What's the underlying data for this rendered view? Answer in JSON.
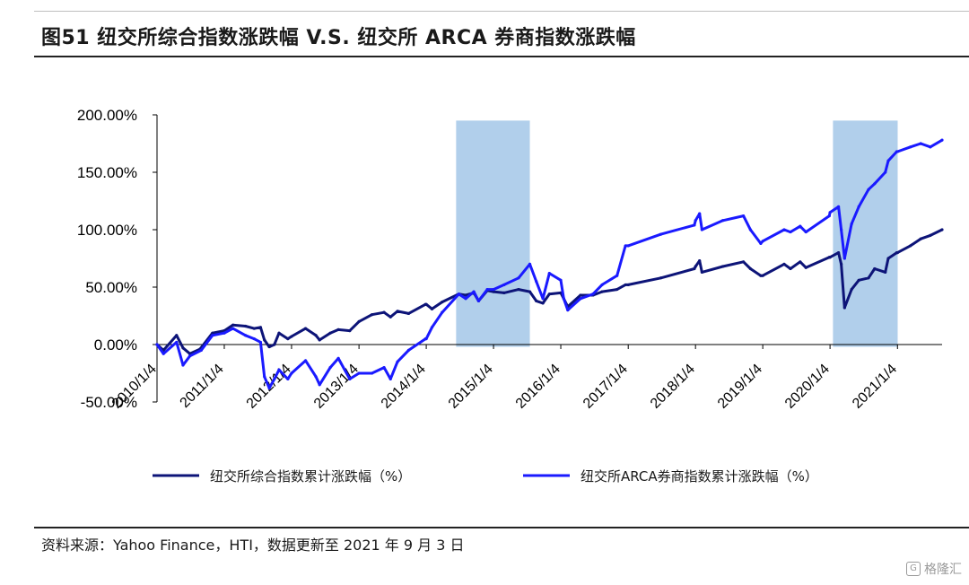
{
  "figure": {
    "title": "图51 纽交所综合指数涨跌幅 V.S. 纽交所 ARCA 券商指数涨跌幅",
    "source": "资料来源：Yahoo Finance，HTI，数据更新至 2021 年 9 月 3 日",
    "watermark": "格隆汇"
  },
  "chart_data": {
    "type": "line",
    "title": "",
    "xlabel": "",
    "ylabel": "",
    "ylim": [
      -50,
      200
    ],
    "yticks": [
      "-50.00%",
      "0.00%",
      "50.00%",
      "100.00%",
      "150.00%",
      "200.00%"
    ],
    "xlim": [
      "2010-01-04",
      "2021-09-03"
    ],
    "xticks": [
      "2010/1/4",
      "2011/1/4",
      "2012/1/4",
      "2013/1/4",
      "2014/1/4",
      "2015/1/4",
      "2016/1/4",
      "2017/1/4",
      "2018/1/4",
      "2019/1/4",
      "2020/1/4",
      "2021/1/4"
    ],
    "grid": false,
    "legend_position": "bottom",
    "shaded_periods": [
      {
        "start": "2014-06-15",
        "end": "2015-07-20",
        "color": "#9dc3e6"
      },
      {
        "start": "2020-01-20",
        "end": "2021-01-05",
        "color": "#9dc3e6"
      }
    ],
    "series": [
      {
        "name": "纽交所综合指数累计涨跌幅（%）",
        "color": "#0d1478",
        "x": [
          "2010-01-04",
          "2010-02-08",
          "2010-04-20",
          "2010-05-25",
          "2010-07-01",
          "2010-08-25",
          "2010-11-01",
          "2011-01-04",
          "2011-02-20",
          "2011-04-29",
          "2011-06-15",
          "2011-07-20",
          "2011-08-10",
          "2011-09-05",
          "2011-10-03",
          "2011-10-28",
          "2011-12-15",
          "2012-01-04",
          "2012-03-20",
          "2012-05-15",
          "2012-06-04",
          "2012-08-01",
          "2012-09-14",
          "2012-11-15",
          "2013-01-04",
          "2013-03-15",
          "2013-05-20",
          "2013-06-24",
          "2013-08-01",
          "2013-09-30",
          "2013-12-31",
          "2014-01-04",
          "2014-02-04",
          "2014-03-31",
          "2014-06-30",
          "2014-08-06",
          "2014-09-19",
          "2014-10-15",
          "2014-12-01",
          "2015-01-04",
          "2015-03-02",
          "2015-05-20",
          "2015-07-20",
          "2015-08-24",
          "2015-09-29",
          "2015-11-03",
          "2016-01-04",
          "2016-01-20",
          "2016-02-11",
          "2016-04-20",
          "2016-06-27",
          "2016-08-15",
          "2016-11-04",
          "2016-12-20",
          "2017-01-04",
          "2017-06-30",
          "2017-12-29",
          "2018-01-04",
          "2018-01-26",
          "2018-02-08",
          "2018-06-01",
          "2018-09-21",
          "2018-10-29",
          "2018-12-24",
          "2019-01-04",
          "2019-04-30",
          "2019-06-03",
          "2019-07-26",
          "2019-08-26",
          "2019-12-31",
          "2020-01-04",
          "2020-02-19",
          "2020-03-05",
          "2020-03-23",
          "2020-04-30",
          "2020-06-08",
          "2020-07-31",
          "2020-09-02",
          "2020-10-30",
          "2020-11-15",
          "2020-12-31",
          "2021-01-04",
          "2021-03-15",
          "2021-05-10",
          "2021-07-01",
          "2021-09-03"
        ],
        "values": [
          0,
          -5,
          8,
          -3,
          -8,
          -4,
          10,
          12,
          17,
          16,
          14,
          15,
          4,
          -2,
          0,
          10,
          5,
          7,
          14,
          8,
          4,
          10,
          13,
          12,
          20,
          26,
          28,
          24,
          29,
          27,
          35,
          35,
          31,
          37,
          44,
          43,
          45,
          38,
          47,
          46,
          45,
          48,
          46,
          38,
          36,
          44,
          45,
          40,
          33,
          43,
          43,
          46,
          48,
          52,
          52,
          58,
          66,
          68,
          73,
          63,
          68,
          72,
          66,
          60,
          60,
          70,
          66,
          72,
          67,
          76,
          76,
          80,
          70,
          32,
          48,
          56,
          58,
          66,
          63,
          75,
          80,
          80,
          86,
          92,
          95,
          100
        ]
      },
      {
        "name": "纽交所ARCA券商指数累计涨跌幅（%）",
        "color": "#1a1aff",
        "x": [
          "2010-01-04",
          "2010-02-08",
          "2010-04-20",
          "2010-05-25",
          "2010-07-01",
          "2010-09-01",
          "2010-11-01",
          "2011-01-04",
          "2011-02-20",
          "2011-04-29",
          "2011-06-15",
          "2011-07-20",
          "2011-08-10",
          "2011-09-05",
          "2011-10-03",
          "2011-10-28",
          "2011-12-15",
          "2012-01-04",
          "2012-03-20",
          "2012-05-15",
          "2012-06-04",
          "2012-08-01",
          "2012-09-14",
          "2012-11-15",
          "2013-01-04",
          "2013-03-15",
          "2013-05-20",
          "2013-06-24",
          "2013-08-01",
          "2013-09-30",
          "2013-12-31",
          "2014-01-04",
          "2014-02-04",
          "2014-03-31",
          "2014-06-30",
          "2014-08-06",
          "2014-09-19",
          "2014-10-15",
          "2014-12-01",
          "2015-01-04",
          "2015-03-02",
          "2015-05-20",
          "2015-07-20",
          "2015-08-24",
          "2015-09-29",
          "2015-11-03",
          "2016-01-04",
          "2016-01-20",
          "2016-02-11",
          "2016-04-20",
          "2016-06-27",
          "2016-08-15",
          "2016-11-04",
          "2016-12-20",
          "2017-01-04",
          "2017-06-30",
          "2017-12-29",
          "2018-01-04",
          "2018-01-26",
          "2018-02-08",
          "2018-06-01",
          "2018-09-21",
          "2018-10-29",
          "2018-12-24",
          "2019-01-04",
          "2019-04-30",
          "2019-06-03",
          "2019-07-26",
          "2019-08-26",
          "2019-12-31",
          "2020-01-04",
          "2020-02-19",
          "2020-03-05",
          "2020-03-23",
          "2020-04-30",
          "2020-06-08",
          "2020-07-31",
          "2020-09-02",
          "2020-10-30",
          "2020-11-15",
          "2020-12-31",
          "2021-01-04",
          "2021-03-15",
          "2021-05-10",
          "2021-07-01",
          "2021-09-03"
        ],
        "values": [
          0,
          -8,
          2,
          -18,
          -10,
          -5,
          8,
          10,
          14,
          8,
          5,
          2,
          -28,
          -38,
          -30,
          -22,
          -30,
          -25,
          -14,
          -28,
          -35,
          -20,
          -12,
          -30,
          -25,
          -25,
          -20,
          -30,
          -15,
          -5,
          5,
          5,
          15,
          28,
          44,
          40,
          46,
          38,
          48,
          48,
          52,
          58,
          70,
          55,
          40,
          62,
          56,
          40,
          30,
          40,
          44,
          52,
          60,
          86,
          86,
          96,
          104,
          108,
          114,
          100,
          108,
          112,
          100,
          88,
          90,
          100,
          98,
          103,
          98,
          112,
          115,
          120,
          100,
          75,
          105,
          120,
          135,
          140,
          150,
          160,
          168,
          168,
          172,
          175,
          172,
          178
        ]
      }
    ]
  }
}
